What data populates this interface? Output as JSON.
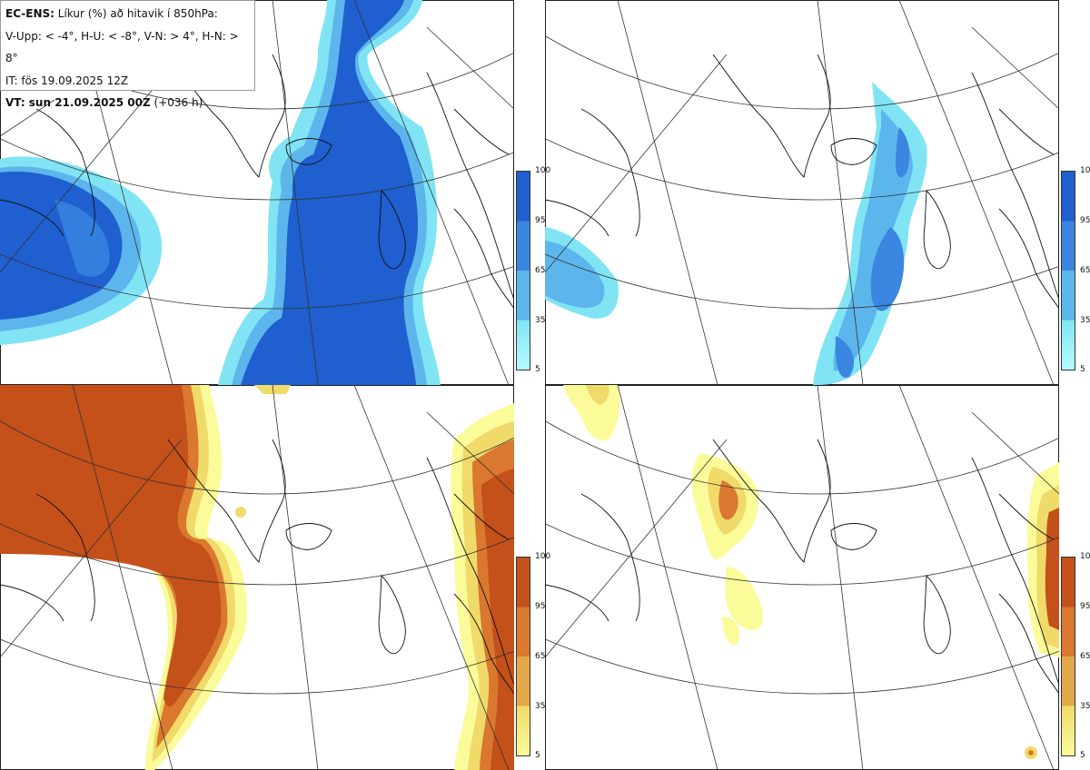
{
  "header": {
    "line1_bold": "EC-ENS:",
    "line1_rest": "Líkur (%) að hitavik í 850hPa:",
    "line2": "V-Upp: < -4°, H-U: < -8°, V-N: > 4°, H-N: > 8°",
    "line3": "IT: fös 19.09.2025 12Z",
    "line4_bold": "VT: sun 21.09.2025 00Z",
    "line4_rest": "(+036 h)"
  },
  "panels": [
    {
      "id": "v-upp",
      "palette": "blue"
    },
    {
      "id": "h-u",
      "palette": "blue"
    },
    {
      "id": "v-n",
      "palette": "orange"
    },
    {
      "id": "h-n",
      "palette": "orange"
    }
  ],
  "colorbar": {
    "ticks": [
      "100",
      "95",
      "65",
      "35",
      "5"
    ],
    "blue": [
      "#1f5fcf",
      "#3a86e0",
      "#5cb6ec",
      "#80e4f4",
      "#b6fbff"
    ],
    "orange": [
      "#c4501a",
      "#d9782e",
      "#e3a84a",
      "#f0da6a",
      "#fbfb9a"
    ]
  }
}
